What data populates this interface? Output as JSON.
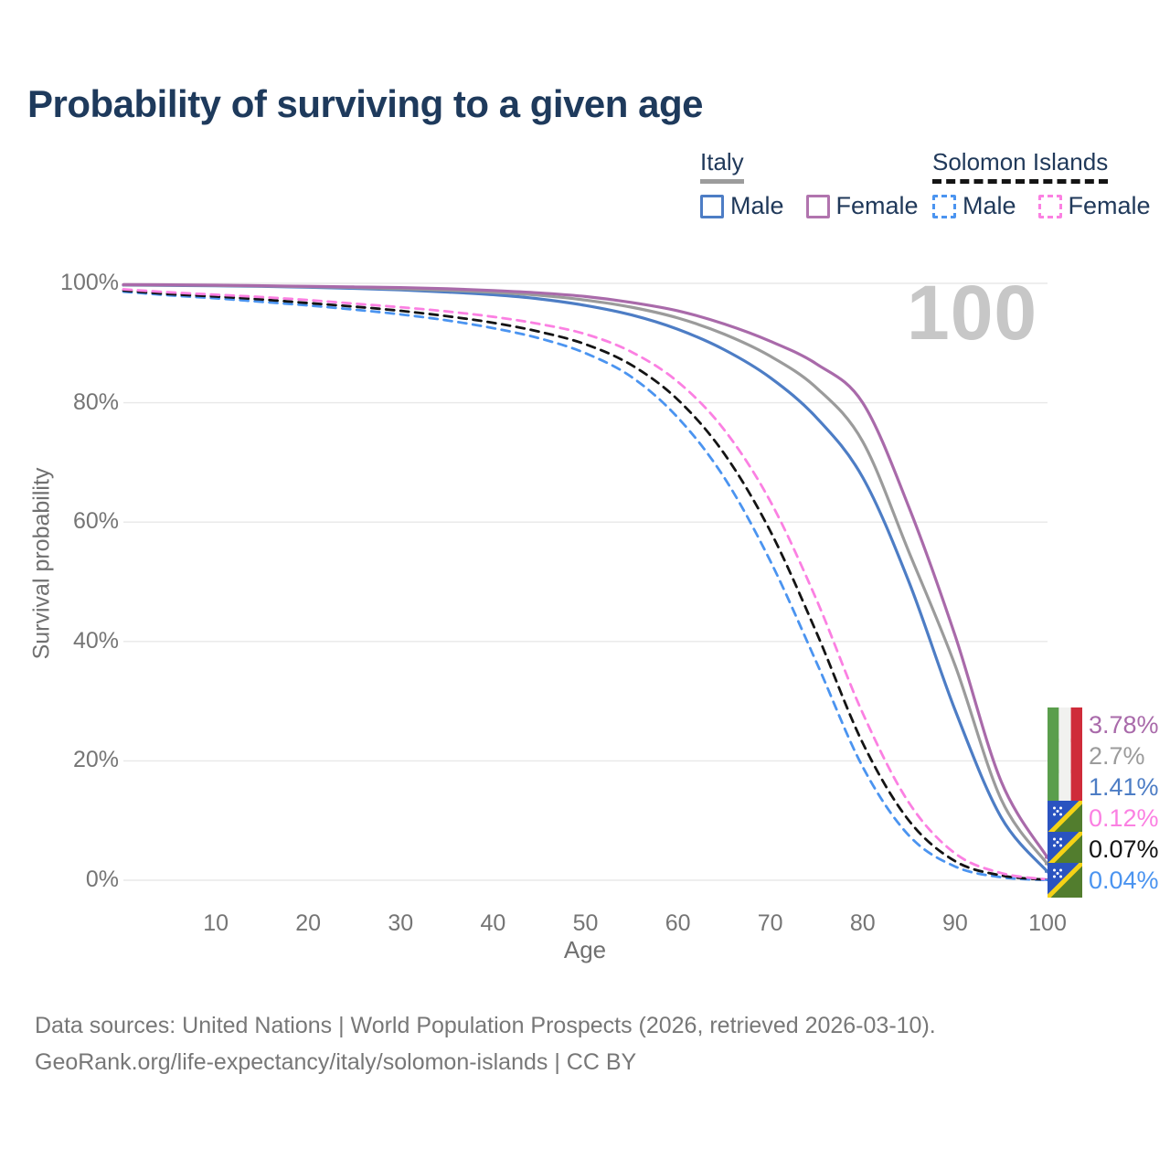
{
  "title": "Probability of surviving to a given age",
  "watermark": "100",
  "legend": {
    "groups": [
      {
        "label": "Italy",
        "underline_style": "solid",
        "underline_color": "#9c9c9c",
        "items": [
          {
            "label": "Male",
            "color": "#4d7dc5",
            "line_style": "solid"
          },
          {
            "label": "Female",
            "color": "#b174ae",
            "line_style": "solid"
          }
        ]
      },
      {
        "label": "Solomon Islands",
        "underline_style": "dashed",
        "underline_color": "#141414",
        "items": [
          {
            "label": "Male",
            "color": "#4b94f0",
            "line_style": "dashed"
          },
          {
            "label": "Female",
            "color": "#fb80e2",
            "line_style": "dashed"
          }
        ]
      }
    ]
  },
  "chart_data": {
    "type": "line",
    "title": "Probability of surviving to a given age",
    "xlabel": "Age",
    "ylabel": "Survival probability",
    "xlim": [
      0,
      100
    ],
    "ylim": [
      0,
      100
    ],
    "grid": "horizontal",
    "x_ticks": [
      10,
      20,
      30,
      40,
      50,
      60,
      70,
      80,
      90,
      100
    ],
    "y_ticks": [
      100,
      80,
      60,
      40,
      20,
      0
    ],
    "y_tick_labels": [
      "100%",
      "80%",
      "60%",
      "40%",
      "20%",
      "0%"
    ],
    "x": [
      0,
      5,
      10,
      15,
      20,
      25,
      30,
      35,
      40,
      45,
      50,
      55,
      60,
      65,
      70,
      75,
      80,
      85,
      90,
      95,
      100
    ],
    "series": [
      {
        "name": "Italy Female",
        "country": "Italy",
        "sex": "Female",
        "color": "#a96aaa",
        "line_style": "solid",
        "flag": "italy-flag-icon",
        "end_label": "3.78%",
        "values": [
          99.8,
          99.75,
          99.7,
          99.6,
          99.5,
          99.4,
          99.3,
          99.1,
          98.8,
          98.4,
          97.8,
          96.8,
          95.4,
          93.2,
          90.3,
          86.5,
          80,
          62.5,
          41,
          16.5,
          3.78
        ]
      },
      {
        "name": "Italy (both sexes)",
        "country": "Italy",
        "sex": "Both",
        "color": "#9b9b9b",
        "line_style": "solid",
        "flag": "italy-flag-icon",
        "end_label": "2.7%",
        "values": [
          99.75,
          99.7,
          99.65,
          99.55,
          99.45,
          99.3,
          99.1,
          98.85,
          98.5,
          98.0,
          97.2,
          96.0,
          94.2,
          91.5,
          87.8,
          82.5,
          73.5,
          55,
          36,
          13.5,
          2.7
        ]
      },
      {
        "name": "Italy Male",
        "country": "Italy",
        "sex": "Male",
        "color": "#4d7dc5",
        "line_style": "solid",
        "flag": "italy-flag-icon",
        "end_label": "1.41%",
        "values": [
          99.7,
          99.65,
          99.6,
          99.5,
          99.35,
          99.15,
          98.9,
          98.55,
          98.1,
          97.4,
          96.3,
          94.7,
          92.3,
          88.9,
          84.2,
          77.5,
          67.5,
          50,
          28.5,
          10.5,
          1.41
        ]
      },
      {
        "name": "Solomon Islands Female",
        "country": "Solomon Islands",
        "sex": "Female",
        "color": "#fb80e2",
        "line_style": "dashed",
        "flag": "solomon-islands-flag-icon",
        "end_label": "0.12%",
        "values": [
          99.0,
          98.5,
          98.1,
          97.7,
          97.2,
          96.6,
          96.0,
          95.3,
          94.4,
          93.2,
          91.5,
          88.5,
          83.5,
          75.5,
          63.5,
          47,
          28,
          13,
          4.5,
          1.2,
          0.12
        ]
      },
      {
        "name": "Solomon Islands (both sexes)",
        "country": "Solomon Islands",
        "sex": "Both",
        "color": "#141414",
        "line_style": "dashed",
        "flag": "solomon-islands-flag-icon",
        "end_label": "0.07%",
        "values": [
          98.8,
          98.2,
          97.8,
          97.3,
          96.7,
          96.1,
          95.4,
          94.5,
          93.4,
          91.9,
          89.8,
          86.3,
          80.5,
          71.5,
          58.5,
          41.5,
          23,
          10,
          3.2,
          0.8,
          0.07
        ]
      },
      {
        "name": "Solomon Islands Male",
        "country": "Solomon Islands",
        "sex": "Male",
        "color": "#4b94f0",
        "line_style": "dashed",
        "flag": "solomon-islands-flag-icon",
        "end_label": "0.04%",
        "values": [
          98.6,
          98.0,
          97.5,
          96.9,
          96.3,
          95.6,
          94.8,
          93.8,
          92.5,
          90.8,
          88.3,
          84.3,
          77.5,
          67.5,
          53.5,
          36.5,
          19,
          7.5,
          2.3,
          0.5,
          0.04
        ]
      }
    ]
  },
  "footer": {
    "line1": "Data sources: United Nations | World Population Prospects (2026, retrieved 2026-03-10).",
    "line2": "GeoRank.org/life-expectancy/italy/solomon-islands | CC BY"
  }
}
